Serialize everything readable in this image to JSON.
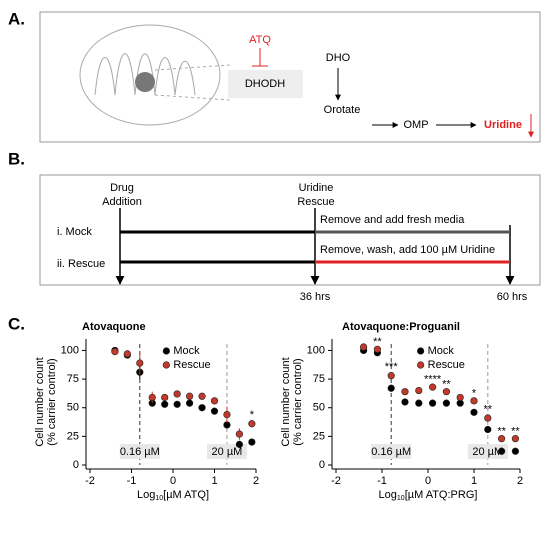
{
  "panel_a": {
    "label": "A.",
    "inhibitor": "ATQ",
    "enzyme": "DHODH",
    "substrate": "DHO",
    "product": "Orotate",
    "intermediate": "OMP",
    "end_product": "Uridine"
  },
  "panel_b": {
    "label": "B.",
    "start_event": [
      "Drug",
      "Addition"
    ],
    "rescue_event": [
      "Uridine",
      "Rescue"
    ],
    "mock_label": "i. Mock",
    "rescue_label": "ii. Rescue",
    "mock_step": "Remove and add fresh media",
    "rescue_step": "Remove, wash, add 100 µM Uridine",
    "time_rescue": "36 hrs",
    "time_end": "60 hrs"
  },
  "panel_c": {
    "label": "C."
  },
  "chart_data": [
    {
      "type": "scatter",
      "title": "Atovaquone",
      "ylabel": [
        "Cell number count",
        "(% carrier control)"
      ],
      "xlabel": {
        "prefix": "Log",
        "sub": "10",
        "suffix": "[µM ATQ]"
      },
      "x": [
        -1.4,
        -1.1,
        -0.8,
        -0.5,
        -0.2,
        0.1,
        0.4,
        0.7,
        1.0,
        1.3,
        1.6,
        1.9
      ],
      "series": [
        {
          "name": "Mock",
          "color": "#000000",
          "values": [
            100,
            96,
            81,
            54,
            53,
            53,
            54,
            50,
            47,
            35,
            18,
            20
          ],
          "errors": [
            2,
            2,
            6,
            2,
            2,
            2,
            2,
            2,
            2,
            3,
            3,
            2
          ]
        },
        {
          "name": "Rescue",
          "color": "#c0392b",
          "values": [
            99,
            97,
            89,
            59,
            59,
            62,
            60,
            60,
            56,
            44,
            27,
            36
          ],
          "errors": [
            3,
            3,
            10,
            5,
            3,
            2,
            2,
            2,
            3,
            7,
            5,
            3
          ]
        }
      ],
      "xlim": [
        -2,
        2
      ],
      "ylim": [
        0,
        110
      ],
      "xticks": [
        -2,
        -1,
        0,
        1,
        2
      ],
      "yticks": [
        0,
        25,
        50,
        75,
        100
      ],
      "reference_lines": [
        {
          "x": -0.8,
          "label": "0.16 µM"
        },
        {
          "x": 1.3,
          "label": "20 µM"
        }
      ],
      "significance": [
        {
          "x": 1.9,
          "label": "*"
        }
      ],
      "legend": "upper right"
    },
    {
      "type": "scatter",
      "title": "Atovaquone:Proguanil",
      "ylabel": [
        "Cell number count",
        "(% carrier control)"
      ],
      "xlabel": {
        "prefix": "Log",
        "sub": "10",
        "suffix": "[µM ATQ:PRG]"
      },
      "x": [
        -1.4,
        -1.1,
        -0.8,
        -0.5,
        -0.2,
        0.1,
        0.4,
        0.7,
        1.0,
        1.3,
        1.6,
        1.9
      ],
      "series": [
        {
          "name": "Mock",
          "color": "#000000",
          "values": [
            100,
            98,
            67,
            55,
            54,
            54,
            54,
            54,
            46,
            31,
            12,
            12
          ],
          "errors": [
            2,
            2,
            3,
            2,
            1,
            1,
            1,
            1,
            2,
            3,
            1,
            1
          ]
        },
        {
          "name": "Rescue",
          "color": "#c0392b",
          "values": [
            103,
            101,
            78,
            64,
            65,
            68,
            64,
            59,
            56,
            41,
            23,
            23
          ],
          "errors": [
            2,
            2,
            3,
            2,
            2,
            2,
            2,
            2,
            2,
            3,
            2,
            2
          ]
        }
      ],
      "xlim": [
        -2,
        2
      ],
      "ylim": [
        0,
        110
      ],
      "xticks": [
        -2,
        -1,
        0,
        1,
        2
      ],
      "yticks": [
        0,
        25,
        50,
        75,
        100
      ],
      "reference_lines": [
        {
          "x": -0.8,
          "label": "0.16 µM"
        },
        {
          "x": 1.3,
          "label": "20 µM"
        }
      ],
      "significance": [
        {
          "x": -1.1,
          "label": "**"
        },
        {
          "x": -0.8,
          "label": "***"
        },
        {
          "x": 0.1,
          "label": "****"
        },
        {
          "x": 0.4,
          "label": "**"
        },
        {
          "x": 1.0,
          "label": "*"
        },
        {
          "x": 1.3,
          "label": "**"
        },
        {
          "x": 1.6,
          "label": "**"
        },
        {
          "x": 1.9,
          "label": "**"
        }
      ],
      "legend": "upper right"
    }
  ]
}
